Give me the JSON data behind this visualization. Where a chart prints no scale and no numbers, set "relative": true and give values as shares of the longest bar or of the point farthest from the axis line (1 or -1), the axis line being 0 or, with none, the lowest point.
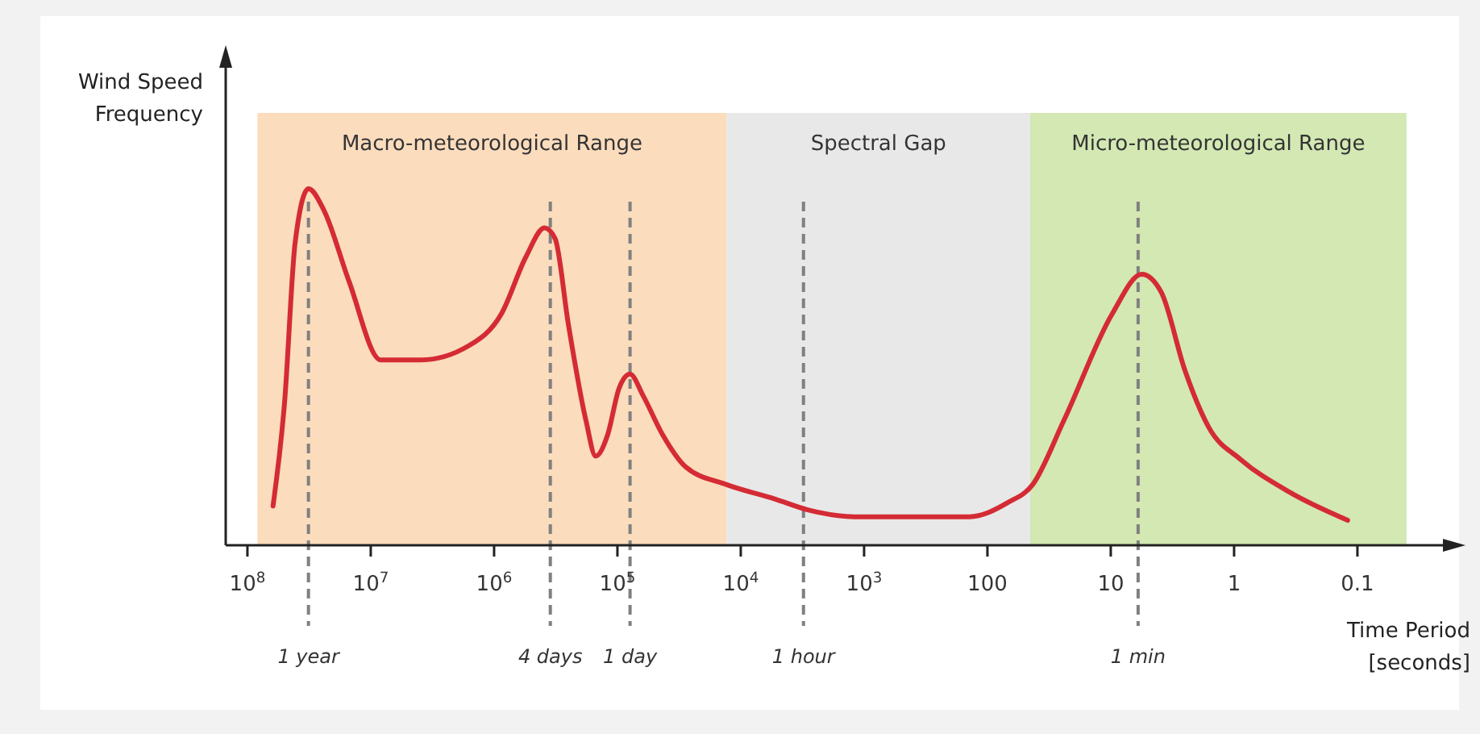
{
  "chart_data": {
    "type": "line",
    "relative": true,
    "xlabel": "Time Period [seconds]",
    "ylabel": "Wind Speed Frequency",
    "log": "x",
    "xlim": [
      150000000,
      0.015
    ],
    "xticks": [
      {
        "value": 100000000,
        "label": "10$^{8}$"
      },
      {
        "value": 10000000,
        "label": "10$^{7}$"
      },
      {
        "value": 1000000,
        "label": "10$^{6}$"
      },
      {
        "value": 100000,
        "label": "10$^{5}$"
      },
      {
        "value": 10000,
        "label": "10$^{4}$"
      },
      {
        "value": 1000,
        "label": "10$^{3}$"
      },
      100,
      10,
      1,
      0.1
    ],
    "x": [
      62000000,
      50000000,
      41000000,
      32000000,
      24000000,
      15000000,
      8300000,
      3900000,
      1600000,
      870000,
      550000,
      390000,
      320000,
      250000,
      180000,
      150000,
      120000,
      97000,
      79000,
      62000,
      43000,
      28000,
      13000,
      5300,
      2900,
      1200,
      480,
      140,
      68,
      43,
      24,
      9.7,
      5.6,
      3.9,
      2.5,
      1.6,
      0.88,
      0.36,
      0.12
    ],
    "series": [
      {
        "color": "#d42b35",
        "values": [
          0.11,
          0.4,
          0.85,
          1,
          0.94,
          0.74,
          0.52,
          0.52,
          0.56,
          0.65,
          0.81,
          0.89,
          0.86,
          0.62,
          0.35,
          0.25,
          0.31,
          0.44,
          0.48,
          0.42,
          0.31,
          0.22,
          0.17,
          0.13,
          0.1,
          0.08,
          0.08,
          0.08,
          0.12,
          0.17,
          0.35,
          0.65,
          0.76,
          0.71,
          0.49,
          0.33,
          0.24,
          0.15,
          0.07
        ]
      }
    ],
    "bands": [
      {
        "axis": "x",
        "from": 83000000,
        "to": 13000,
        "label": "Macro-meteorological Range",
        "color": "#fbdcbd"
      },
      {
        "axis": "x",
        "from": 13000,
        "to": 45,
        "label": "Spectral Gap",
        "color": "#e8e8e8"
      },
      {
        "axis": "x",
        "from": 45,
        "to": 0.04,
        "label": "Micro-meteorological Range",
        "color": "#d3e8b3"
      }
    ],
    "ref_lines": [
      {
        "axis": "x",
        "value": 32000000,
        "label": "1 year",
        "color": "#808080",
        "line_style": "dashed"
      },
      {
        "axis": "x",
        "value": 350000,
        "label": "4 days",
        "color": "#808080",
        "line_style": "dashed"
      },
      {
        "axis": "x",
        "value": 79000,
        "label": "1 day",
        "color": "#808080",
        "line_style": "dashed"
      },
      {
        "axis": "x",
        "value": 3100,
        "label": "1 hour",
        "color": "#808080",
        "line_style": "dashed"
      },
      {
        "axis": "x",
        "value": 6,
        "label": "1 min",
        "color": "#808080",
        "line_style": "dashed"
      }
    ]
  }
}
